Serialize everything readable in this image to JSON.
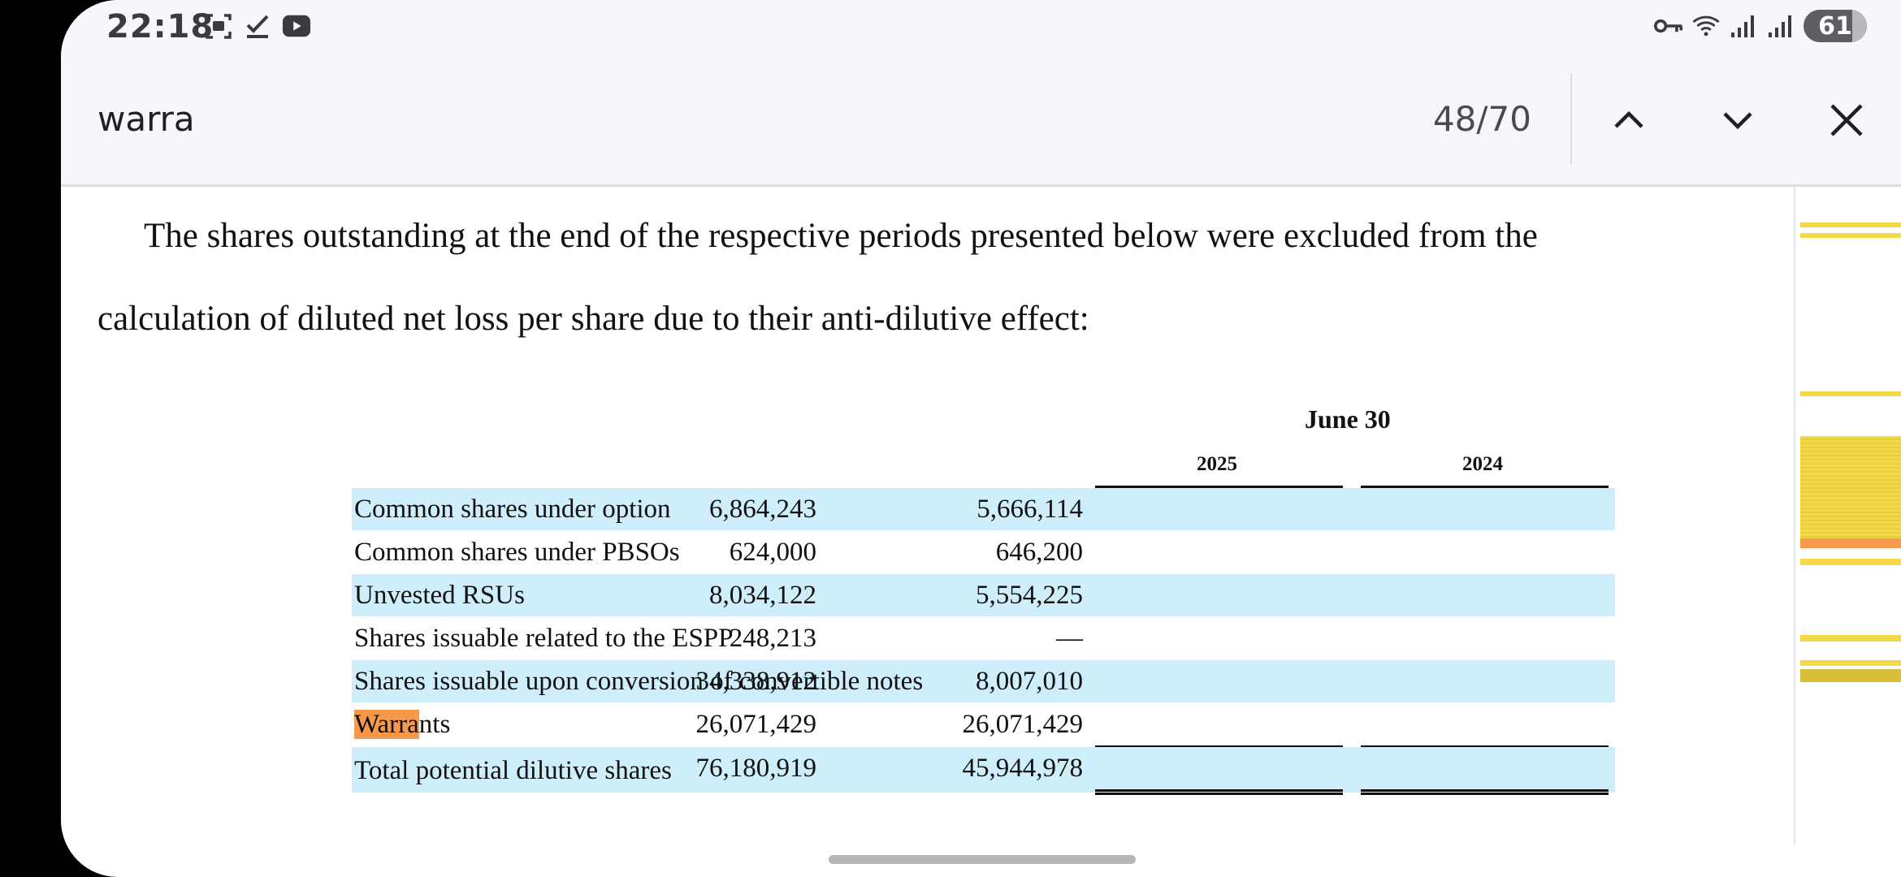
{
  "status_bar": {
    "time": "22:18",
    "left_icons": [
      "screenshot-icon",
      "check-icon",
      "youtube-icon"
    ],
    "right_icons": [
      "vpn-key-icon",
      "wifi-icon",
      "signal-icon",
      "signal-icon"
    ],
    "battery": "61"
  },
  "find_bar": {
    "query": "warra",
    "match_count": "48/70",
    "prev_icon": "chevron-up-icon",
    "next_icon": "chevron-down-icon",
    "close_icon": "close-icon"
  },
  "document": {
    "paragraph_line1": "The shares outstanding at the end of the respective periods presented below were excluded from the",
    "paragraph_line2": "calculation of diluted net loss per share due to their anti-dilutive effect:",
    "table": {
      "group_header": "June 30",
      "columns": [
        "2025",
        "2024"
      ],
      "rows": [
        {
          "label": "Common shares under option",
          "v2025": "6,864,243",
          "v2024": "5,666,114"
        },
        {
          "label": "Common shares under PBSOs",
          "v2025": "624,000",
          "v2024": "646,200"
        },
        {
          "label": "Unvested RSUs",
          "v2025": "8,034,122",
          "v2024": "5,554,225"
        },
        {
          "label": "Shares issuable related to the ESPP",
          "v2025": "248,213",
          "v2024": "—"
        },
        {
          "label": "Shares issuable upon conversion of convertible notes",
          "v2025": "34,338,912",
          "v2024": "8,007,010"
        },
        {
          "label_match": "Warra",
          "label_rest": "nts",
          "v2025": "26,071,429",
          "v2024": "26,071,429"
        },
        {
          "label": "Total potential dilutive shares",
          "v2025": "76,180,919",
          "v2024": "45,944,978"
        }
      ]
    }
  },
  "colors": {
    "row_band": "#cfeefb",
    "match_current": "#f7994a",
    "match_other": "#f3d84a"
  }
}
